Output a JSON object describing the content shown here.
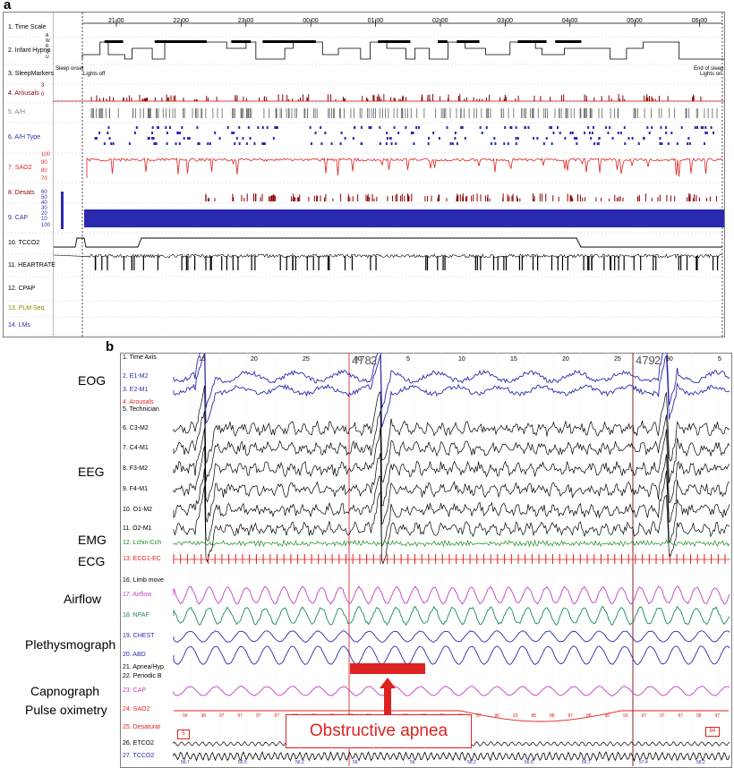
{
  "panel_a": {
    "letter": "a",
    "time_ticks": [
      "21:00",
      "22:00",
      "23:00",
      "00:00",
      "01:00",
      "02:00",
      "03:00",
      "04:00",
      "05:00",
      "06:00"
    ],
    "tracks": [
      {
        "label": "1. Time Scale",
        "color": "#000000"
      },
      {
        "label": "2. Infant Hypno",
        "color": "#000000"
      },
      {
        "label": "3. SleepMarkers",
        "color": "#000000"
      },
      {
        "label": "4. Arousals",
        "color": "#8b0000"
      },
      {
        "label": "5. A/H",
        "color": "#808080"
      },
      {
        "label": "6. A/H Type",
        "color": "#2a2ab0"
      },
      {
        "label": "7. SAO2",
        "color": "#e02020"
      },
      {
        "label": "8. Desats",
        "color": "#8b0000"
      },
      {
        "label": "9. CAP",
        "color": "#2a2ab0"
      },
      {
        "label": "10. TCCO2",
        "color": "#000000"
      },
      {
        "label": "11. HEARTRATE",
        "color": "#000000"
      },
      {
        "label": "12. CPAP",
        "color": "#000000"
      },
      {
        "label": "13. PLM Seq",
        "color": "#8b8b00"
      },
      {
        "label": "14. LMs",
        "color": "#2a2ab0"
      }
    ],
    "hypno_stage_letters": [
      "A",
      "W",
      "R",
      "Q",
      "U"
    ],
    "markers": {
      "sleep_onset": "Sleep onset",
      "lights_off": "Lights off",
      "end_of_sleep": "End of sleep",
      "lights_on": "Lights on"
    },
    "scale_values": {
      "arousals": [
        "3",
        "0"
      ],
      "sao2": [
        "100",
        "90",
        "80",
        "70"
      ],
      "cap": [
        "60",
        "50",
        "40",
        "30",
        "20",
        "10"
      ],
      "cap_low": [
        "100"
      ]
    }
  },
  "panel_b": {
    "letter": "b",
    "time_ticks": [
      "15",
      "20",
      "25",
      "30",
      "5",
      "10",
      "15",
      "20",
      "25",
      "30",
      "5"
    ],
    "epoch_labels": [
      "478",
      "2",
      "479",
      "2"
    ],
    "channels": [
      {
        "label": "1. Time Axis",
        "color": "#000000"
      },
      {
        "label": "2. E1-M2",
        "color": "#2a2ab0"
      },
      {
        "label": "3. E2-M1",
        "color": "#2a2ab0"
      },
      {
        "label": "4. Arousals",
        "color": "#e02020"
      },
      {
        "label": "5. Technician",
        "color": "#000000"
      },
      {
        "label": "6. C3-M2",
        "color": "#000000"
      },
      {
        "label": "7. C4-M1",
        "color": "#000000"
      },
      {
        "label": "8. F3-M2",
        "color": "#000000"
      },
      {
        "label": "9. F4-M1",
        "color": "#000000"
      },
      {
        "label": "10. O1-M2",
        "color": "#000000"
      },
      {
        "label": "11. O2-M1",
        "color": "#000000"
      },
      {
        "label": "12. Lchin-Cch",
        "color": "#1a8a1a"
      },
      {
        "label": "13. ECG1-EC",
        "color": "#e02020"
      },
      {
        "label": "16. Limb move",
        "color": "#000000"
      },
      {
        "label": "17. Airflow",
        "color": "#c040c0"
      },
      {
        "label": "18. NPAF",
        "color": "#1a8a5a"
      },
      {
        "label": "19. CHEST",
        "color": "#2a2ab0"
      },
      {
        "label": "20. ABD",
        "color": "#2a2ab0"
      },
      {
        "label": "21. Apnea/Hyp",
        "color": "#000000"
      },
      {
        "label": "22. Periodic B",
        "color": "#000000"
      },
      {
        "label": "23. CAP",
        "color": "#c040c0"
      },
      {
        "label": "24. SAO2",
        "color": "#e02020"
      },
      {
        "label": "25. Desaturat",
        "color": "#e02020"
      },
      {
        "label": "26. ETCO2",
        "color": "#000000"
      },
      {
        "label": "27. TCCO2",
        "color": "#2a2ab0"
      }
    ],
    "side_labels": {
      "eog": "EOG",
      "eeg": "EEG",
      "emg": "EMG",
      "ecg": "ECG",
      "airflow": "Airflow",
      "pleth": "Plethysmograph",
      "capno": "Capnograph",
      "pulseox": "Pulse oximetry"
    },
    "spo2_readings": [
      "99",
      "98",
      "97",
      "97",
      "97",
      "97",
      "96",
      "97",
      "97",
      "97",
      "97",
      "97",
      "98",
      "97",
      "97",
      "97",
      "97",
      "96",
      "93",
      "88",
      "88",
      "87",
      "88",
      "90",
      "93",
      "97",
      "97",
      "97",
      "98",
      "97"
    ],
    "tcco2_readings": [
      "56.7",
      "56.5",
      "56.2",
      "56",
      "56",
      "56.2",
      "56.5",
      "56.7",
      "57.4",
      "58.2"
    ],
    "callout": "Obstructive apnea",
    "box_values": [
      "5",
      "84"
    ],
    "colors": {
      "apnea_bar": "#dd2222",
      "callout_border": "#dd2222",
      "callout_text": "#dd2222",
      "epoch_line": "#8b2020",
      "cursor_line": "#e04040"
    }
  }
}
